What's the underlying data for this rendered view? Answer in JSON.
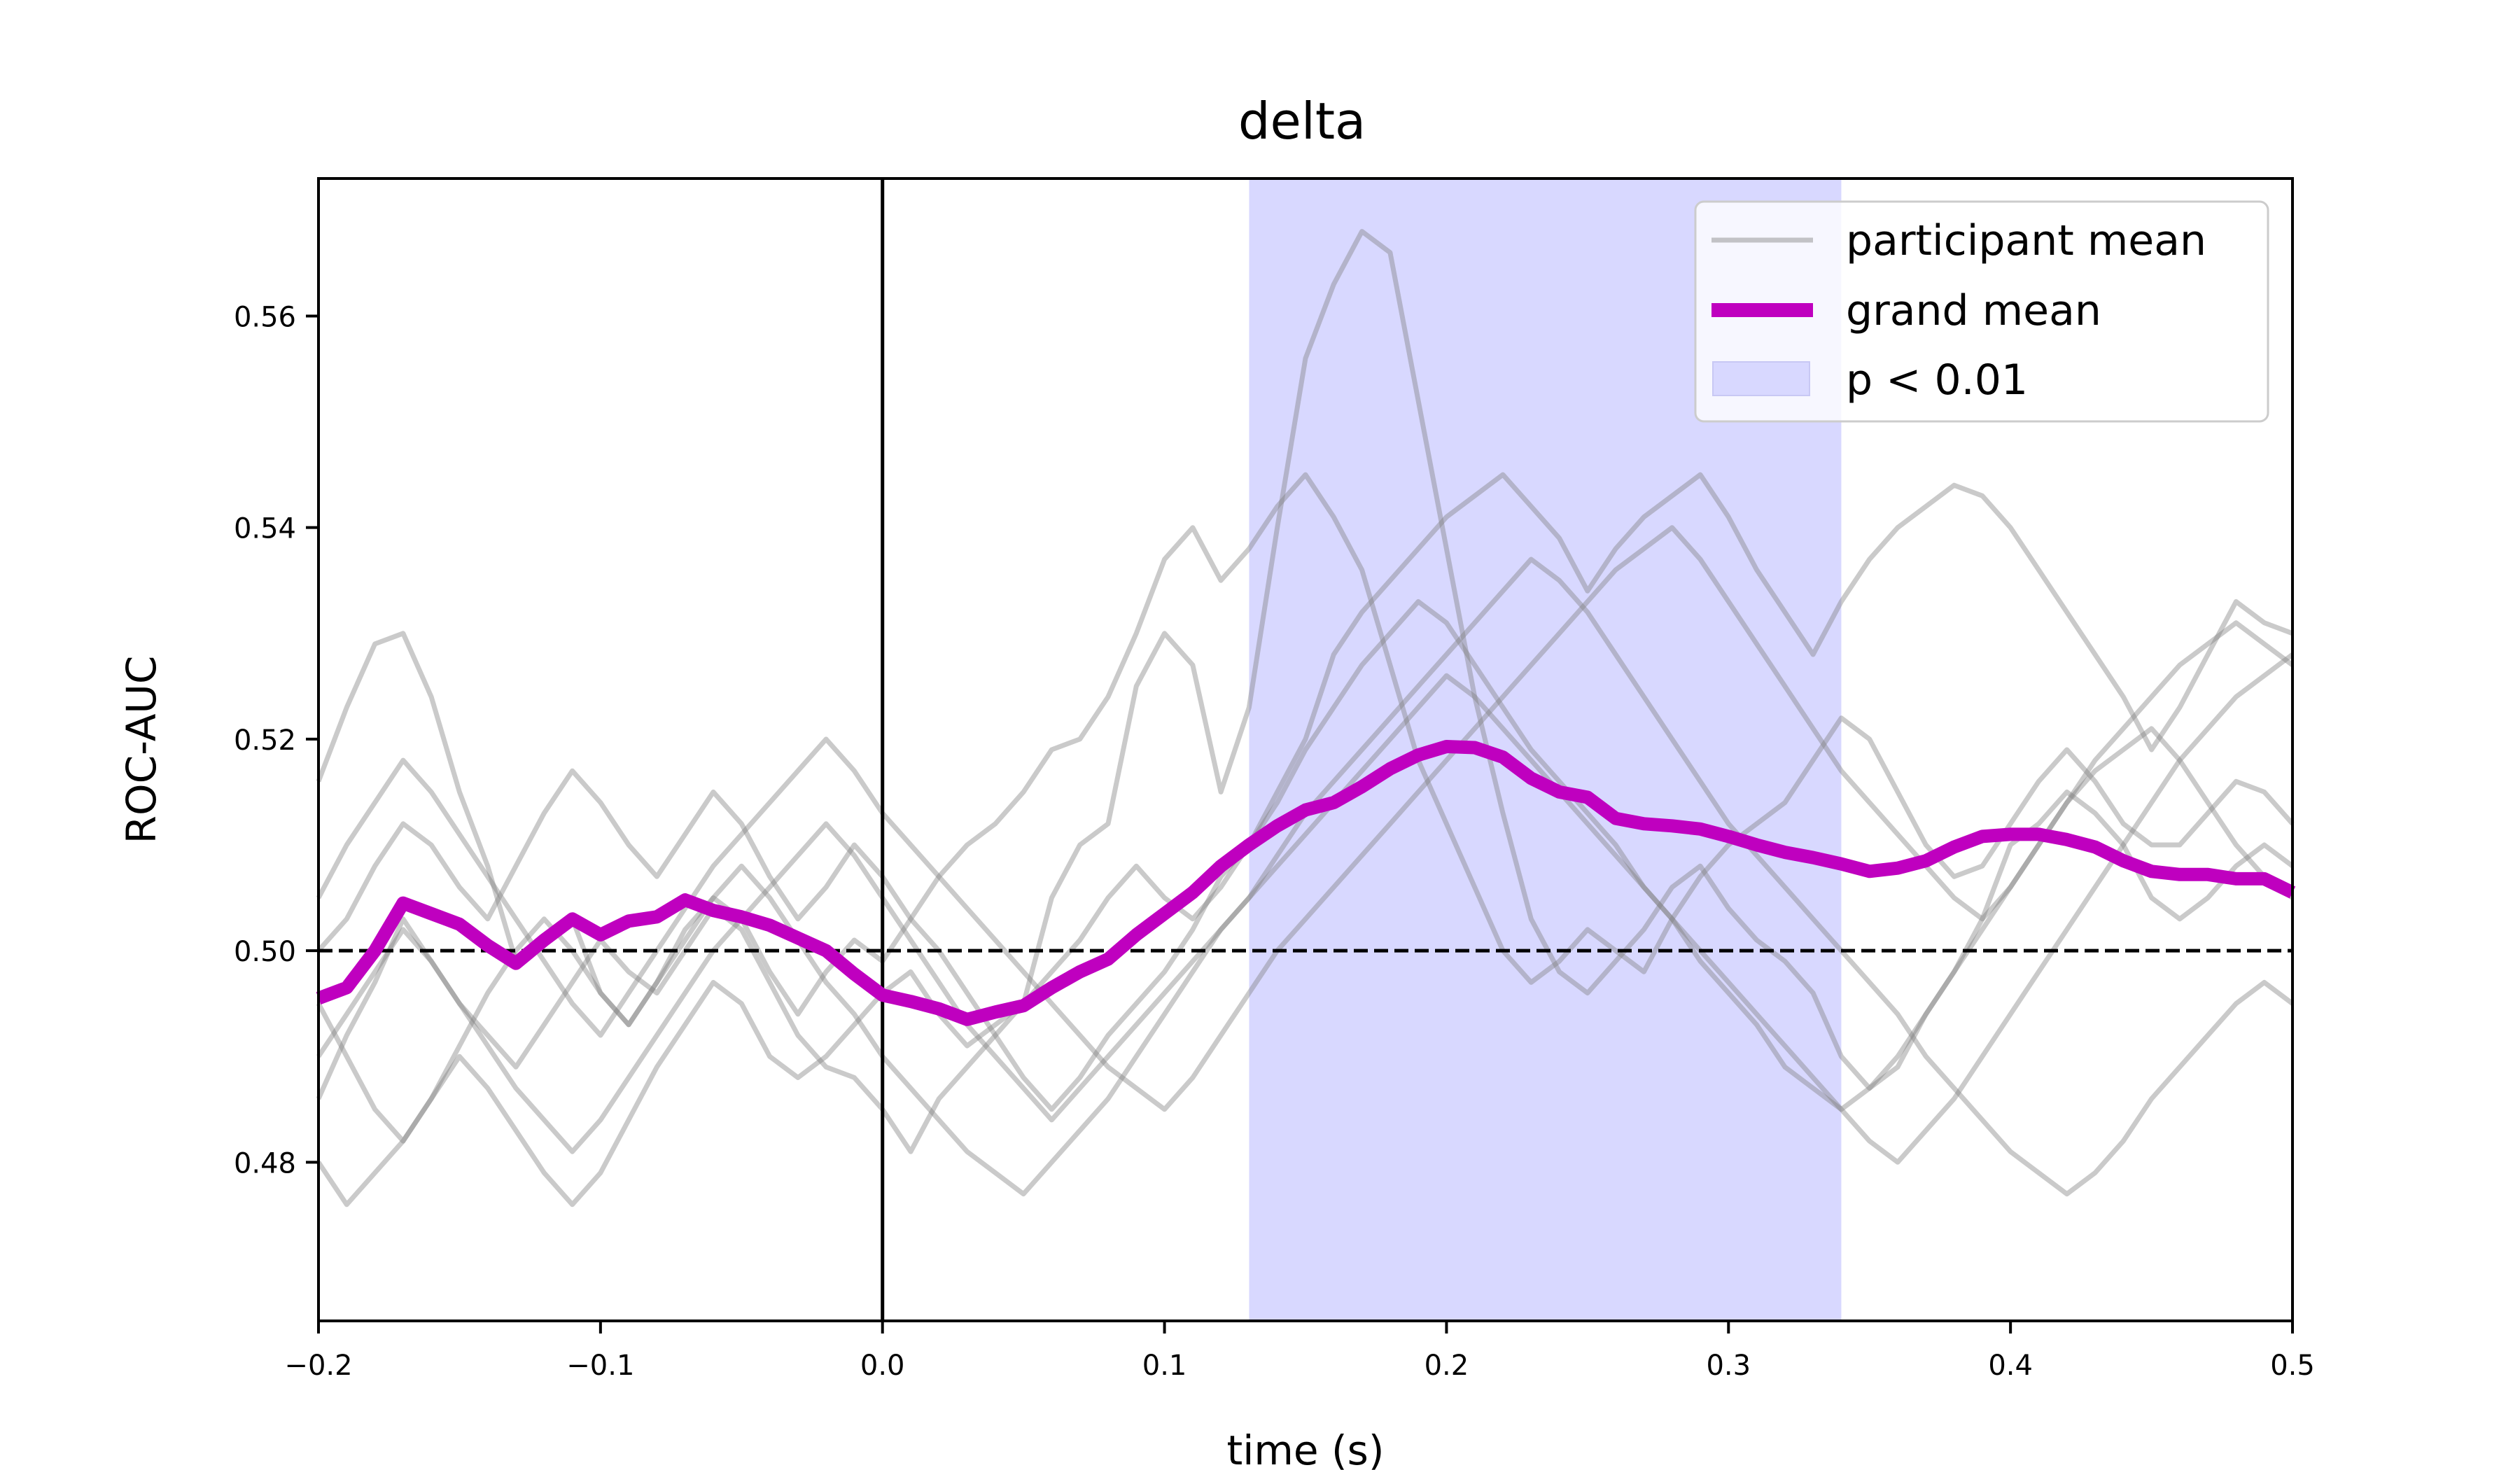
{
  "chart_data": {
    "type": "line",
    "title": "delta",
    "xlabel": "time (s)",
    "ylabel": "ROC-AUC",
    "xlim": [
      -0.2,
      0.5
    ],
    "ylim": [
      0.465,
      0.573
    ],
    "xticks": [
      -0.2,
      -0.1,
      0.0,
      0.1,
      0.2,
      0.3,
      0.4,
      0.5
    ],
    "xtick_labels": [
      "−0.2",
      "−0.1",
      "0.0",
      "0.1",
      "0.2",
      "0.3",
      "0.4",
      "0.5"
    ],
    "yticks": [
      0.48,
      0.5,
      0.52,
      0.54,
      0.56
    ],
    "ytick_labels": [
      "0.48",
      "0.50",
      "0.52",
      "0.54",
      "0.56"
    ],
    "grid": false,
    "legend_placement": "top-right",
    "reference_lines": {
      "chance_level_y": 0.5,
      "stimulus_onset_x": 0.0
    },
    "significance_window": {
      "label": "p < 0.01",
      "x_start": 0.13,
      "x_end": 0.34,
      "color": "#d8d8ff"
    },
    "colors": {
      "participant": "#808080",
      "grand_mean": "#bf00bf",
      "significance": "#d8d8ff"
    },
    "legend": [
      {
        "label": "participant mean",
        "kind": "participant"
      },
      {
        "label": "grand mean",
        "kind": "grand"
      },
      {
        "label": "p < 0.01",
        "kind": "patch"
      }
    ],
    "grand_mean": {
      "name": "grand mean",
      "x": [
        -0.2,
        -0.19,
        -0.18,
        -0.17,
        -0.16,
        -0.15,
        -0.14,
        -0.13,
        -0.12,
        -0.11,
        -0.1,
        -0.09,
        -0.08,
        -0.07,
        -0.06,
        -0.05,
        -0.04,
        -0.03,
        -0.02,
        -0.01,
        0.0,
        0.01,
        0.02,
        0.03,
        0.04,
        0.05,
        0.06,
        0.07,
        0.08,
        0.09,
        0.1,
        0.11,
        0.12,
        0.13,
        0.14,
        0.15,
        0.16,
        0.17,
        0.18,
        0.19,
        0.2,
        0.21,
        0.22,
        0.23,
        0.24,
        0.25,
        0.26,
        0.27,
        0.28,
        0.29,
        0.3,
        0.31,
        0.32,
        0.33,
        0.34,
        0.35,
        0.36,
        0.37,
        0.38,
        0.39,
        0.4,
        0.41,
        0.42,
        0.43,
        0.44,
        0.45,
        0.46,
        0.47,
        0.48,
        0.49,
        0.5
      ],
      "y": [
        0.4955,
        0.4965,
        0.5,
        0.5045,
        0.5035,
        0.5025,
        0.5005,
        0.4988,
        0.501,
        0.503,
        0.5015,
        0.5028,
        0.5032,
        0.5048,
        0.5038,
        0.5032,
        0.5024,
        0.5012,
        0.5,
        0.4978,
        0.4958,
        0.4952,
        0.4945,
        0.4935,
        0.4942,
        0.4948,
        0.4965,
        0.498,
        0.4992,
        0.5015,
        0.5035,
        0.5055,
        0.508,
        0.51,
        0.5118,
        0.5133,
        0.514,
        0.5155,
        0.5172,
        0.5185,
        0.5193,
        0.5192,
        0.5183,
        0.5163,
        0.515,
        0.5145,
        0.5125,
        0.512,
        0.5118,
        0.5115,
        0.5108,
        0.51,
        0.5093,
        0.5088,
        0.5082,
        0.5075,
        0.5078,
        0.5085,
        0.5098,
        0.5108,
        0.511,
        0.511,
        0.5105,
        0.5098,
        0.5085,
        0.5075,
        0.5072,
        0.5072,
        0.5068,
        0.5068,
        0.5055
      ]
    },
    "participant_series": [
      {
        "y": [
          0.486,
          0.492,
          0.497,
          0.503,
          0.499,
          0.495,
          0.492,
          0.489,
          0.493,
          0.497,
          0.501,
          0.498,
          0.496,
          0.5,
          0.504,
          0.502,
          0.497,
          0.492,
          0.489,
          0.488,
          0.485,
          0.481,
          0.486,
          0.489,
          0.492,
          0.495,
          0.505,
          0.51,
          0.512,
          0.525,
          0.53,
          0.527,
          0.515,
          0.523,
          0.54,
          0.556,
          0.563,
          0.568,
          0.566,
          0.552,
          0.538,
          0.524,
          0.513,
          0.503,
          0.498,
          0.496,
          0.499,
          0.502,
          0.506,
          0.508,
          0.504,
          0.501,
          0.499,
          0.496,
          0.49,
          0.487,
          0.489,
          0.494,
          0.498,
          0.503,
          0.51,
          0.512,
          0.515,
          0.513,
          0.51,
          0.505,
          0.503,
          0.505,
          0.508,
          0.51,
          0.508
        ]
      },
      {
        "y": [
          0.516,
          0.523,
          0.529,
          0.53,
          0.524,
          0.515,
          0.508,
          0.499,
          0.501,
          0.503,
          0.496,
          0.493,
          0.497,
          0.502,
          0.505,
          0.503,
          0.498,
          0.494,
          0.498,
          0.501,
          0.499,
          0.503,
          0.507,
          0.51,
          0.512,
          0.515,
          0.519,
          0.52,
          0.524,
          0.53,
          0.537,
          0.54,
          0.535,
          0.538,
          0.542,
          0.545,
          0.541,
          0.536,
          0.527,
          0.518,
          0.512,
          0.506,
          0.5,
          0.497,
          0.499,
          0.502,
          0.5,
          0.498,
          0.503,
          0.507,
          0.51,
          0.512,
          0.514,
          0.518,
          0.522,
          0.52,
          0.515,
          0.51,
          0.507,
          0.508,
          0.512,
          0.516,
          0.519,
          0.516,
          0.512,
          0.51,
          0.51,
          0.513,
          0.516,
          0.515,
          0.512
        ]
      },
      {
        "y": [
          0.48,
          0.476,
          0.479,
          0.482,
          0.486,
          0.49,
          0.487,
          0.483,
          0.479,
          0.476,
          0.479,
          0.484,
          0.489,
          0.493,
          0.497,
          0.495,
          0.49,
          0.488,
          0.49,
          0.493,
          0.496,
          0.498,
          0.494,
          0.491,
          0.493,
          0.495,
          0.498,
          0.501,
          0.505,
          0.508,
          0.505,
          0.503,
          0.506,
          0.51,
          0.515,
          0.52,
          0.528,
          0.532,
          0.535,
          0.538,
          0.541,
          0.543,
          0.545,
          0.542,
          0.539,
          0.534,
          0.538,
          0.541,
          0.543,
          0.545,
          0.541,
          0.536,
          0.532,
          0.528,
          0.533,
          0.537,
          0.54,
          0.542,
          0.544,
          0.543,
          0.54,
          0.536,
          0.532,
          0.528,
          0.524,
          0.519,
          0.523,
          0.528,
          0.533,
          0.531,
          0.53
        ]
      },
      {
        "y": [
          0.5,
          0.503,
          0.508,
          0.512,
          0.51,
          0.506,
          0.503,
          0.508,
          0.513,
          0.517,
          0.514,
          0.51,
          0.507,
          0.511,
          0.515,
          0.512,
          0.507,
          0.503,
          0.506,
          0.51,
          0.507,
          0.503,
          0.5,
          0.496,
          0.492,
          0.488,
          0.485,
          0.488,
          0.492,
          0.495,
          0.498,
          0.502,
          0.507,
          0.51,
          0.514,
          0.519,
          0.523,
          0.527,
          0.53,
          0.533,
          0.531,
          0.527,
          0.523,
          0.519,
          0.516,
          0.513,
          0.51,
          0.506,
          0.503,
          0.499,
          0.496,
          0.493,
          0.489,
          0.487,
          0.485,
          0.487,
          0.49,
          0.494,
          0.498,
          0.502,
          0.506,
          0.51,
          0.514,
          0.517,
          0.519,
          0.521,
          0.518,
          0.514,
          0.51,
          0.507,
          0.505
        ]
      },
      {
        "y": [
          0.495,
          0.49,
          0.485,
          0.482,
          0.486,
          0.491,
          0.496,
          0.5,
          0.503,
          0.5,
          0.496,
          0.493,
          0.497,
          0.501,
          0.505,
          0.508,
          0.505,
          0.501,
          0.497,
          0.494,
          0.49,
          0.487,
          0.484,
          0.481,
          0.479,
          0.477,
          0.48,
          0.483,
          0.486,
          0.49,
          0.494,
          0.498,
          0.502,
          0.505,
          0.509,
          0.513,
          0.516,
          0.519,
          0.522,
          0.525,
          0.528,
          0.531,
          0.534,
          0.537,
          0.535,
          0.532,
          0.528,
          0.524,
          0.52,
          0.516,
          0.512,
          0.509,
          0.506,
          0.503,
          0.5,
          0.497,
          0.494,
          0.49,
          0.487,
          0.484,
          0.481,
          0.479,
          0.477,
          0.479,
          0.482,
          0.486,
          0.489,
          0.492,
          0.495,
          0.497,
          0.495
        ]
      },
      {
        "y": [
          0.505,
          0.51,
          0.514,
          0.518,
          0.515,
          0.511,
          0.507,
          0.503,
          0.499,
          0.495,
          0.492,
          0.496,
          0.5,
          0.504,
          0.508,
          0.511,
          0.514,
          0.517,
          0.52,
          0.517,
          0.513,
          0.51,
          0.507,
          0.504,
          0.501,
          0.498,
          0.495,
          0.492,
          0.489,
          0.487,
          0.485,
          0.488,
          0.492,
          0.496,
          0.5,
          0.503,
          0.506,
          0.509,
          0.512,
          0.515,
          0.518,
          0.521,
          0.524,
          0.527,
          0.53,
          0.533,
          0.536,
          0.538,
          0.54,
          0.537,
          0.533,
          0.529,
          0.525,
          0.521,
          0.517,
          0.514,
          0.511,
          0.508,
          0.505,
          0.503,
          0.506,
          0.51,
          0.514,
          0.518,
          0.521,
          0.524,
          0.527,
          0.529,
          0.531,
          0.529,
          0.527
        ]
      },
      {
        "y": [
          0.49,
          0.494,
          0.498,
          0.502,
          0.499,
          0.495,
          0.491,
          0.487,
          0.484,
          0.481,
          0.484,
          0.488,
          0.492,
          0.496,
          0.5,
          0.503,
          0.506,
          0.509,
          0.512,
          0.509,
          0.505,
          0.501,
          0.497,
          0.493,
          0.49,
          0.487,
          0.484,
          0.487,
          0.49,
          0.493,
          0.496,
          0.499,
          0.502,
          0.505,
          0.508,
          0.511,
          0.514,
          0.517,
          0.52,
          0.523,
          0.526,
          0.524,
          0.521,
          0.518,
          0.515,
          0.512,
          0.509,
          0.506,
          0.503,
          0.5,
          0.497,
          0.494,
          0.491,
          0.488,
          0.485,
          0.482,
          0.48,
          0.483,
          0.486,
          0.49,
          0.494,
          0.498,
          0.502,
          0.506,
          0.51,
          0.514,
          0.518,
          0.521,
          0.524,
          0.526,
          0.528
        ]
      }
    ]
  }
}
